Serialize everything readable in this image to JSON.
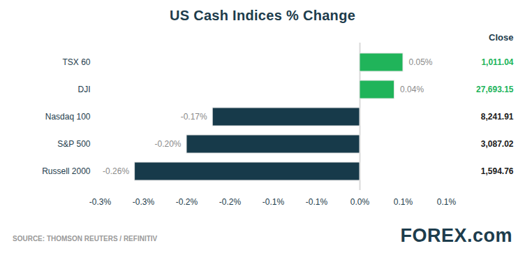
{
  "chart_data": {
    "type": "bar",
    "title": "US Cash Indices % Change",
    "orientation": "horizontal",
    "categories": [
      "TSX 60",
      "DJI",
      "Nasdaq 100",
      "S&P 500",
      "Russell 2000"
    ],
    "values": [
      0.05,
      0.04,
      -0.17,
      -0.2,
      -0.26
    ],
    "value_labels": [
      "0.05%",
      "0.04%",
      "-0.17%",
      "-0.20%",
      "-0.26%"
    ],
    "data_labels": true,
    "colors": [
      "#20b45a",
      "#20b45a",
      "#173a4a",
      "#173a4a",
      "#173a4a"
    ],
    "xlim": [
      -0.3,
      0.1
    ],
    "xticks": [
      {
        "value": -0.3,
        "label": "-0.3%"
      },
      {
        "value": -0.25,
        "label": "-0.3%"
      },
      {
        "value": -0.2,
        "label": "-0.2%"
      },
      {
        "value": -0.15,
        "label": "-0.2%"
      },
      {
        "value": -0.1,
        "label": "-0.1%"
      },
      {
        "value": -0.05,
        "label": "-0.1%"
      },
      {
        "value": 0,
        "label": "0.0%"
      },
      {
        "value": 0.05,
        "label": "0.1%"
      },
      {
        "value": 0.1,
        "label": "0.1%"
      }
    ],
    "grid": false,
    "close_label": "Close",
    "close_values": [
      1011.04,
      27693.15,
      8241.91,
      3087.02,
      1594.76
    ],
    "source": "SOURCE: THOMSON REUTERS / REFINITIV",
    "logo": "FOREX.com"
  }
}
